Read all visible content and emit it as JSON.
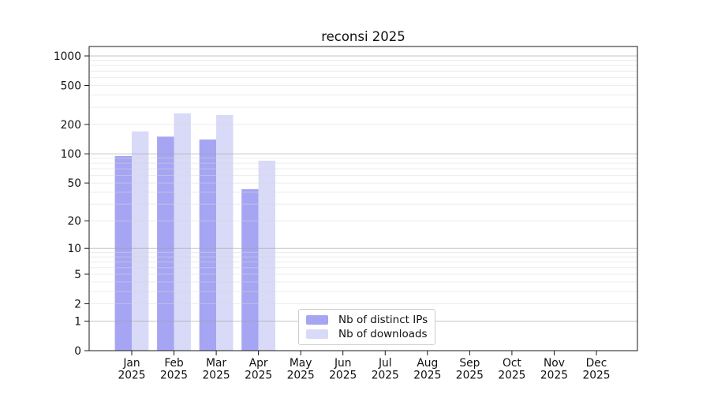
{
  "chart_data": {
    "type": "bar",
    "title": "reconsi 2025",
    "categories": [
      "Jan",
      "Feb",
      "Mar",
      "Apr",
      "May",
      "Jun",
      "Jul",
      "Aug",
      "Sep",
      "Oct",
      "Nov",
      "Dec"
    ],
    "year_label": "2025",
    "series": [
      {
        "name": "Nb of distinct IPs",
        "color": "#a5a5f3",
        "values": [
          95,
          150,
          140,
          43,
          null,
          null,
          null,
          null,
          null,
          null,
          null,
          null
        ]
      },
      {
        "name": "Nb of downloads",
        "color": "#d9d9f8",
        "values": [
          170,
          260,
          250,
          85,
          null,
          null,
          null,
          null,
          null,
          null,
          null,
          null
        ]
      }
    ],
    "yscale": "log1p",
    "yticks": [
      0,
      1,
      2,
      5,
      10,
      20,
      50,
      100,
      200,
      500,
      1000
    ],
    "ylim": [
      0,
      1250
    ],
    "xlabel": "",
    "ylabel": "",
    "grid": {
      "major": true,
      "minor": true,
      "orientation": "horizontal"
    },
    "legend": {
      "location": "lower center-left inside plot"
    }
  }
}
